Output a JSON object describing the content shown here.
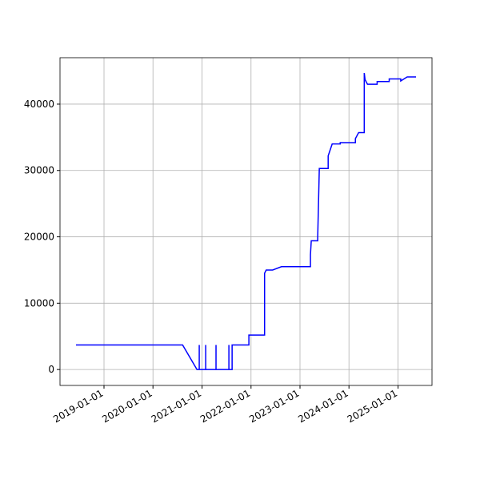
{
  "chart_data": {
    "type": "line",
    "color": "#0000ff",
    "grid": true,
    "x": [
      "2018-06-06",
      "2020-08-09",
      "2020-11-24",
      "2020-12-11",
      "2020-12-11",
      "2020-12-11",
      "2021-01-28",
      "2021-01-28",
      "2021-01-28",
      "2021-04-15",
      "2021-04-15",
      "2021-04-15",
      "2021-07-20",
      "2021-07-20",
      "2021-07-20",
      "2021-08-13",
      "2021-08-13",
      "2021-12-16",
      "2021-12-16",
      "2022-04-12",
      "2022-04-12",
      "2022-04-24",
      "2022-06-11",
      "2022-08-16",
      "2023-03-20",
      "2023-03-20",
      "2023-03-26",
      "2023-05-13",
      "2023-05-13",
      "2023-05-25",
      "2023-07-30",
      "2023-07-30",
      "2023-08-29",
      "2023-10-28",
      "2023-10-28",
      "2024-02-18",
      "2024-02-18",
      "2024-03-13",
      "2024-04-24",
      "2024-04-24",
      "2024-04-30",
      "2024-05-18",
      "2024-07-29",
      "2024-07-29",
      "2024-10-27",
      "2024-10-27",
      "2025-01-21",
      "2025-01-21",
      "2025-03-10",
      "2025-05-15"
    ],
    "values": [
      3700,
      3700,
      0,
      0,
      3700,
      0,
      0,
      3700,
      0,
      0,
      3700,
      0,
      0,
      3700,
      0,
      0,
      3700,
      3700,
      5200,
      5200,
      14500,
      15000,
      15000,
      15500,
      15500,
      17300,
      19400,
      19400,
      19900,
      30300,
      30300,
      32200,
      34000,
      34000,
      34200,
      34200,
      34800,
      35700,
      35700,
      44700,
      43700,
      43000,
      43000,
      43400,
      43400,
      43800,
      43800,
      43500,
      44100,
      44100
    ],
    "xlim": [
      "2018-02-07",
      "2025-09-11"
    ],
    "xticks": [
      "2019-01-01",
      "2020-01-01",
      "2021-01-01",
      "2022-01-01",
      "2023-01-01",
      "2024-01-01",
      "2025-01-01"
    ],
    "ylim": [
      -2400,
      47000
    ],
    "yticks": [
      0,
      10000,
      20000,
      30000,
      40000
    ]
  }
}
